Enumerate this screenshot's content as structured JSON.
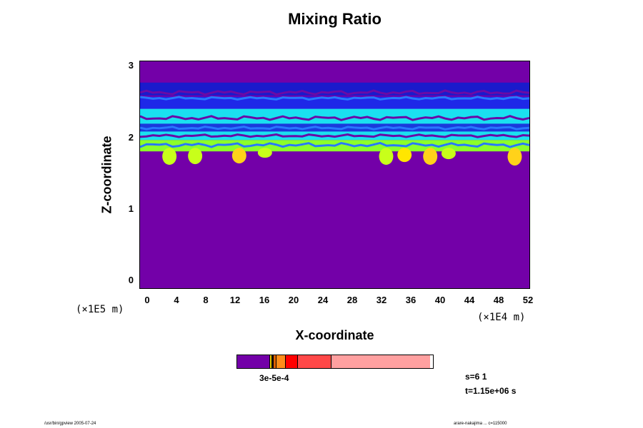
{
  "chart_data": {
    "type": "heatmap",
    "title": "Mixing Ratio",
    "xlabel": "X-coordinate",
    "ylabel": "Z-coordinate",
    "x_unit": "(×1E4 m)",
    "y_unit": "(×1E5 m)",
    "xlim": [
      -1,
      52
    ],
    "ylim": [
      -0.1,
      3.1
    ],
    "x_ticks": [
      "0",
      "4",
      "8",
      "12",
      "16",
      "20",
      "24",
      "28",
      "32",
      "36",
      "40",
      "44",
      "48",
      "52"
    ],
    "y_ticks": [
      "0",
      "1",
      "2",
      "3"
    ],
    "colorbar": {
      "colors": [
        "#7300a8",
        "#e8c800",
        "#111111",
        "#e06000",
        "#ff8c1a",
        "#ff0000",
        "#ff4848",
        "#ffa0a0"
      ],
      "widths": [
        16.5,
        0.6,
        0.4,
        1.2,
        4.2,
        6.1,
        16.6,
        50.4
      ],
      "labels": "3e-5e-4"
    },
    "layers": [
      {
        "zmin": 2.62,
        "zmax": 2.8,
        "color": "#1a1acc",
        "edge": 2.66,
        "amp": 0.03
      },
      {
        "zmin": 2.43,
        "zmax": 2.6,
        "color": "#1e28e8",
        "edge": 2.58,
        "amp": 0.02
      },
      {
        "zmin": 2.22,
        "zmax": 2.43,
        "color": "#1ae0f0",
        "edge": 2.3,
        "amp": 0.03
      },
      {
        "zmin": 2.11,
        "zmax": 2.22,
        "color": "#1a3adc",
        "edge": 2.16,
        "amp": 0.02
      },
      {
        "zmin": 1.99,
        "zmax": 2.11,
        "color": "#1ae0f0",
        "edge": 2.05,
        "amp": 0.02
      },
      {
        "zmin": 1.83,
        "zmax": 1.99,
        "color": "#8cff2a",
        "edge": 1.92,
        "amp": 0.03
      }
    ],
    "plumes": [
      {
        "x": 3.0,
        "zmin": 1.66,
        "color": "#c8ff1a"
      },
      {
        "x": 6.5,
        "zmin": 1.67,
        "color": "#c8ff1a"
      },
      {
        "x": 12.5,
        "zmin": 1.68,
        "color": "#ffd21a"
      },
      {
        "x": 16.0,
        "zmin": 1.76,
        "color": "#c8ff1a"
      },
      {
        "x": 32.5,
        "zmin": 1.66,
        "color": "#c8ff1a"
      },
      {
        "x": 35.0,
        "zmin": 1.7,
        "color": "#ffe600"
      },
      {
        "x": 38.5,
        "zmin": 1.66,
        "color": "#ffd21a"
      },
      {
        "x": 41.0,
        "zmin": 1.74,
        "color": "#c8ff1a"
      },
      {
        "x": 50.0,
        "zmin": 1.65,
        "color": "#ffd21a"
      }
    ]
  },
  "info": {
    "s": "s=6 1",
    "t": "t=1.15e+06 s"
  },
  "footer": {
    "left": "/usr/bin/gpview 2005-07-24",
    "right": "arare-nakajima ... c=115000"
  }
}
